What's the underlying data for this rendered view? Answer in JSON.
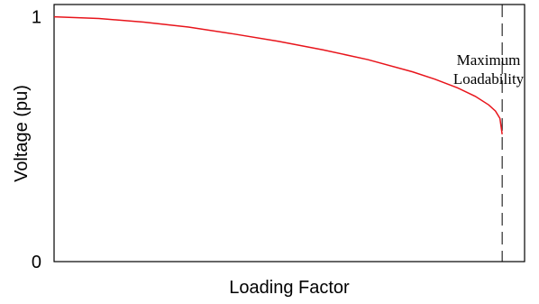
{
  "chart_data": {
    "type": "line",
    "xlabel": "Loading Factor",
    "ylabel": "Voltage (pu)",
    "xlim": [
      0,
      1.05
    ],
    "ylim": [
      0,
      1.05
    ],
    "yticks": [
      {
        "value": 0,
        "label": "0"
      },
      {
        "value": 1,
        "label": "1"
      }
    ],
    "grid": false,
    "series": [
      {
        "color": "#e8141b",
        "x": [
          0,
          0.1,
          0.2,
          0.3,
          0.4,
          0.5,
          0.6,
          0.7,
          0.8,
          0.85,
          0.9,
          0.94,
          0.97,
          0.985,
          0.995,
          1.0
        ],
        "y": [
          1.0,
          0.993,
          0.978,
          0.958,
          0.93,
          0.9,
          0.865,
          0.825,
          0.775,
          0.745,
          0.71,
          0.675,
          0.64,
          0.615,
          0.585,
          0.52
        ]
      }
    ],
    "annotations": {
      "limit_x": 1.0,
      "limit_line_style": "dashed",
      "limit_label_line1": "Maximum",
      "limit_label_line2": "Loadability"
    }
  }
}
